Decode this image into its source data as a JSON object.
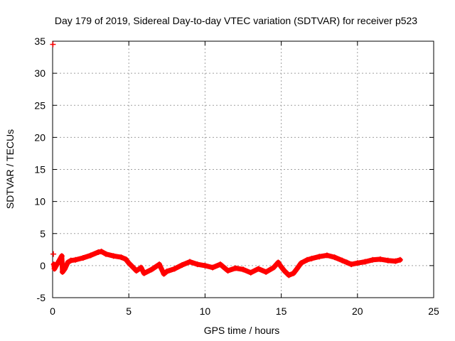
{
  "chart_data": {
    "type": "scatter",
    "title": "Day 179 of 2019, Sidereal Day-to-day VTEC variation (SDTVAR) for receiver p523",
    "xlabel": "GPS time / hours",
    "ylabel": "SDTVAR / TECUs",
    "xlim": [
      0,
      25
    ],
    "ylim": [
      -5,
      35
    ],
    "xticks": [
      0,
      5,
      10,
      15,
      20,
      25
    ],
    "yticks": [
      -5,
      0,
      5,
      10,
      15,
      20,
      25,
      30,
      35
    ],
    "grid": true,
    "marker": "+",
    "series": [
      {
        "name": "SDTVAR",
        "color": "#ff0000",
        "x": [
          0.02,
          0.05,
          0.08,
          0.12,
          0.6,
          0.65,
          0.8,
          1.0,
          1.2,
          1.5,
          2.0,
          2.5,
          3.0,
          3.2,
          3.5,
          4.0,
          4.5,
          4.8,
          5.0,
          5.5,
          5.8,
          6.0,
          6.5,
          7.0,
          7.3,
          7.5,
          8.0,
          8.5,
          9.0,
          9.5,
          10.0,
          10.5,
          11.0,
          11.5,
          12.0,
          12.5,
          13.0,
          13.5,
          14.0,
          14.5,
          14.8,
          15.0,
          15.2,
          15.5,
          15.8,
          16.0,
          16.3,
          16.7,
          17.0,
          17.5,
          18.0,
          18.5,
          19.0,
          19.3,
          19.6,
          20.0,
          20.5,
          21.0,
          21.5,
          22.0,
          22.5,
          22.8
        ],
        "y": [
          34.5,
          1.8,
          0.2,
          -0.5,
          1.5,
          -1.0,
          -0.5,
          0.5,
          0.8,
          0.9,
          1.2,
          1.6,
          2.1,
          2.2,
          1.8,
          1.5,
          1.3,
          1.0,
          0.4,
          -0.8,
          -0.3,
          -1.2,
          -0.6,
          0.2,
          -1.3,
          -0.9,
          -0.5,
          0.1,
          0.6,
          0.2,
          0.0,
          -0.3,
          0.2,
          -0.8,
          -0.4,
          -0.6,
          -1.1,
          -0.5,
          -1.0,
          -0.3,
          0.5,
          -0.2,
          -0.8,
          -1.5,
          -1.2,
          -0.6,
          0.4,
          0.9,
          1.1,
          1.4,
          1.6,
          1.3,
          0.8,
          0.5,
          0.2,
          0.4,
          0.6,
          0.9,
          1.0,
          0.8,
          0.7,
          0.9
        ]
      }
    ]
  }
}
